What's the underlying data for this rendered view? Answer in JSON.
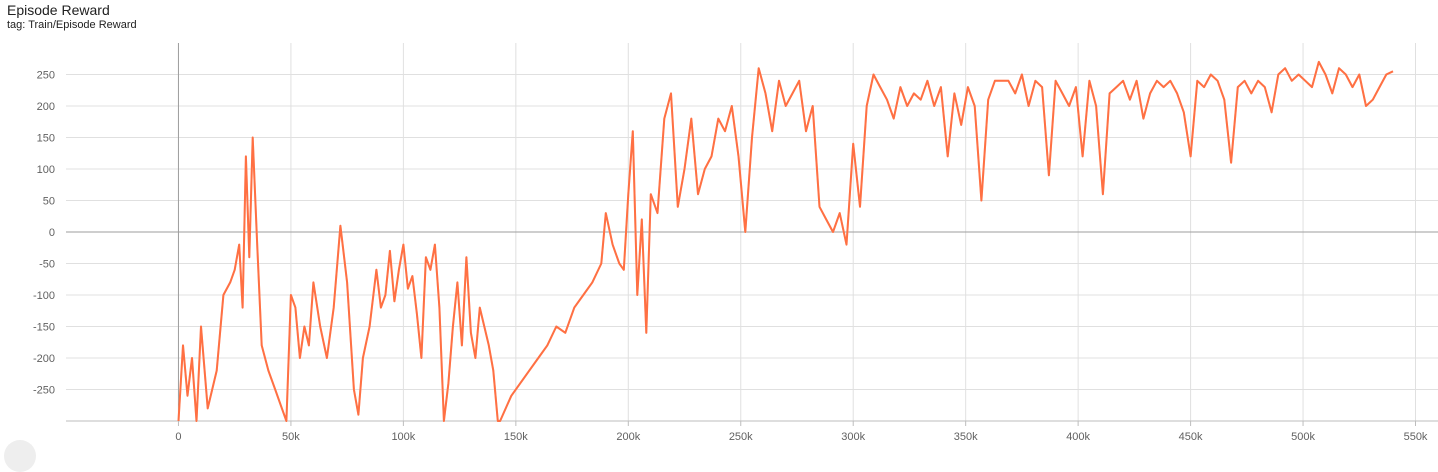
{
  "title": "Episode Reward",
  "subtitle": "tag: Train/Episode Reward",
  "chart_data": {
    "type": "line",
    "title": "Episode Reward",
    "xlabel": "",
    "ylabel": "",
    "xlim": [
      -50000,
      560000
    ],
    "ylim": [
      -300,
      300
    ],
    "x_ticks": [
      0,
      50000,
      100000,
      150000,
      200000,
      250000,
      300000,
      350000,
      400000,
      450000,
      500000,
      550000
    ],
    "x_tick_labels": [
      "0",
      "50k",
      "100k",
      "150k",
      "200k",
      "250k",
      "300k",
      "350k",
      "400k",
      "450k",
      "500k",
      "550k"
    ],
    "y_ticks": [
      -250,
      -200,
      -150,
      -100,
      -50,
      0,
      50,
      100,
      150,
      200,
      250
    ],
    "y_tick_labels": [
      "-250",
      "-200",
      "-150",
      "-100",
      "-50",
      "0",
      "50",
      "100",
      "150",
      "200",
      "250"
    ],
    "grid": true,
    "colors": {
      "smoothed": "#ff7043",
      "raw": "#ffccbc"
    },
    "series": [
      {
        "x": [
          0,
          2000,
          4000,
          6000,
          8000,
          10000,
          13000,
          17000,
          20000,
          23000,
          25000,
          27000,
          28500,
          30000,
          31500,
          33000,
          35000,
          37000,
          40000,
          43000,
          46000,
          48000,
          50000,
          52000,
          54000,
          56000,
          58000,
          60000,
          63000,
          66000,
          69000,
          72000,
          75000,
          78000,
          80000,
          82000,
          85000,
          88000,
          90000,
          92000,
          94000,
          96000,
          98000,
          100000,
          102000,
          104000,
          106000,
          108000,
          110000,
          112000,
          114000,
          116000,
          118000,
          120000,
          122000,
          124000,
          126000,
          128000,
          130000,
          132000,
          134000,
          136000,
          138000,
          140000,
          142000,
          143000,
          148000,
          152000,
          156000,
          160000,
          164000,
          168000,
          172000,
          176000,
          180000,
          184000,
          188000,
          190000,
          193000,
          196000,
          198000,
          200000,
          202000,
          204000,
          206000,
          208000,
          210000,
          213000,
          216000,
          219000,
          222000,
          225000,
          228000,
          231000,
          234000,
          237000,
          240000,
          243000,
          246000,
          249000,
          252000,
          255000,
          258000,
          261000,
          264000,
          267000,
          270000,
          273000,
          276000,
          279000,
          282000,
          285000,
          288000,
          291000,
          294000,
          297000,
          300000,
          303000,
          306000,
          309000,
          312000,
          315000,
          318000,
          321000,
          324000,
          327000,
          330000,
          333000,
          336000,
          339000,
          342000,
          345000,
          348000,
          351000,
          354000,
          357000,
          360000,
          363000,
          366000,
          369000,
          372000,
          375000,
          378000,
          381000,
          384000,
          387000,
          390000,
          393000,
          396000,
          399000,
          402000,
          405000,
          408000,
          411000,
          414000,
          417000,
          420000,
          423000,
          426000,
          429000,
          432000,
          435000,
          438000,
          441000,
          444000,
          447000,
          450000,
          453000,
          456000,
          459000,
          462000,
          465000,
          468000,
          471000,
          474000,
          477000,
          480000,
          483000,
          486000,
          489000,
          492000,
          495000,
          498000,
          501000,
          504000,
          507000,
          510000,
          513000,
          516000,
          519000,
          522000,
          525000,
          528000,
          531000,
          534000,
          537000,
          540000
        ],
        "values": [
          -300,
          -180,
          -260,
          -200,
          -300,
          -150,
          -280,
          -220,
          -100,
          -80,
          -60,
          -20,
          -120,
          120,
          -40,
          150,
          -20,
          -180,
          -220,
          -250,
          -280,
          -300,
          -100,
          -120,
          -200,
          -150,
          -180,
          -80,
          -150,
          -200,
          -120,
          10,
          -80,
          -250,
          -290,
          -200,
          -150,
          -60,
          -120,
          -100,
          -30,
          -110,
          -60,
          -20,
          -90,
          -70,
          -130,
          -200,
          -40,
          -60,
          -20,
          -120,
          -300,
          -240,
          -150,
          -80,
          -180,
          -40,
          -160,
          -200,
          -120,
          -150,
          -180,
          -220,
          -300,
          -300,
          -260,
          -240,
          -220,
          -200,
          -180,
          -150,
          -160,
          -120,
          -100,
          -80,
          -50,
          30,
          -20,
          -50,
          -60,
          60,
          160,
          -100,
          20,
          -160,
          60,
          30,
          180,
          220,
          40,
          100,
          180,
          60,
          100,
          120,
          180,
          160,
          200,
          120,
          0,
          150,
          260,
          220,
          160,
          240,
          200,
          220,
          240,
          160,
          200,
          40,
          20,
          0,
          30,
          -20,
          140,
          40,
          200,
          250,
          230,
          210,
          180,
          230,
          200,
          220,
          210,
          240,
          200,
          230,
          120,
          220,
          170,
          230,
          200,
          50,
          210,
          240,
          240,
          240,
          220,
          250,
          200,
          240,
          230,
          90,
          240,
          220,
          200,
          230,
          120,
          240,
          200,
          60,
          220,
          230,
          240,
          210,
          240,
          180,
          220,
          240,
          230,
          240,
          220,
          190,
          120,
          240,
          230,
          250,
          240,
          210,
          110,
          230,
          240,
          220,
          240,
          230,
          190,
          250,
          260,
          240,
          250,
          240,
          230,
          270,
          250,
          220,
          260,
          250,
          230,
          250,
          200,
          210,
          230,
          250,
          255
        ]
      }
    ]
  }
}
